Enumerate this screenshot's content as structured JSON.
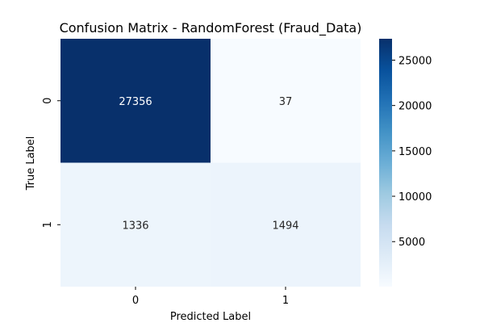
{
  "chart_data": {
    "type": "heatmap",
    "title": "Confusion Matrix - RandomForest (Fraud_Data)",
    "xlabel": "Predicted Label",
    "ylabel": "True Label",
    "x_categories": [
      "0",
      "1"
    ],
    "y_categories": [
      "0",
      "1"
    ],
    "values": [
      [
        27356,
        37
      ],
      [
        1336,
        1494
      ]
    ],
    "colormap": "Blues",
    "colorbar": {
      "min": 37,
      "max": 27356,
      "ticks": [
        5000,
        10000,
        15000,
        20000,
        25000
      ],
      "tick_labels": [
        "5000",
        "10000",
        "15000",
        "20000",
        "25000"
      ]
    },
    "cell_text_colors": {
      "dark": "#ffffff",
      "light": "#262626"
    }
  }
}
